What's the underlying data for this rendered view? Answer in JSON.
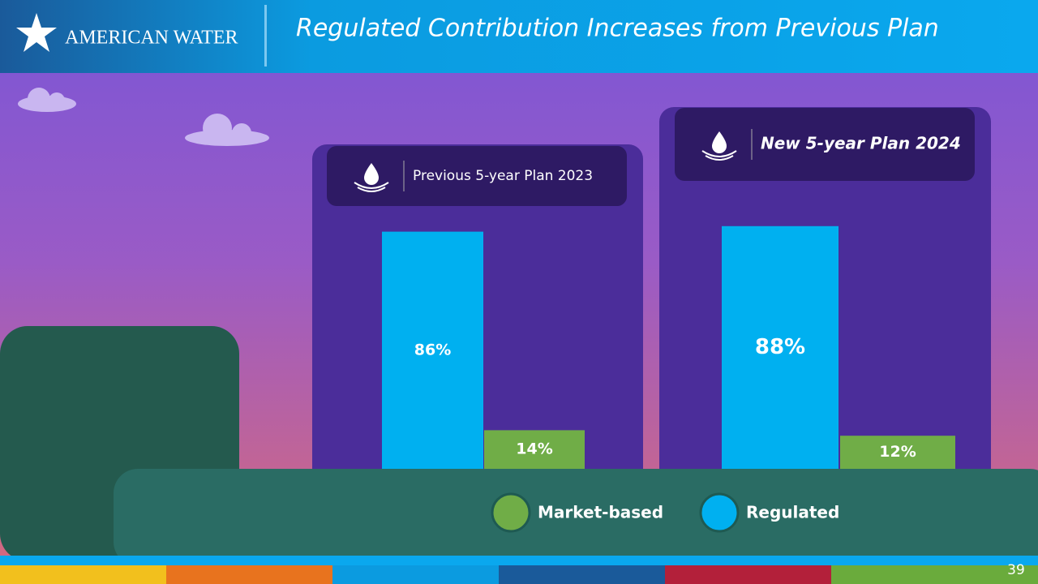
{
  "header": {
    "logo": "American Water",
    "title": "Regulated Contribution Increases from Previous Plan"
  },
  "chart_data": {
    "type": "bar",
    "categories": [
      "Previous 5-year Plan 2023",
      "New 5-year Plan 2024"
    ],
    "series": [
      {
        "name": "Regulated",
        "color": "#00b0f0",
        "values": [
          86,
          88
        ],
        "value_labels": [
          "86%",
          "88%"
        ]
      },
      {
        "name": "Market-based",
        "color": "#70ad47",
        "values": [
          14,
          12
        ],
        "value_labels": [
          "14%",
          "12%"
        ]
      }
    ]
  },
  "footer": {
    "page_number": "39"
  }
}
